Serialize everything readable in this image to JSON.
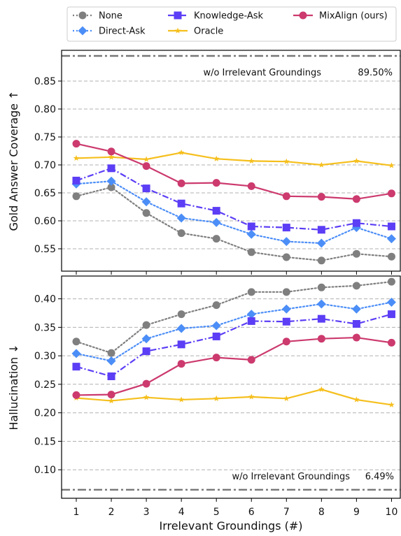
{
  "legend": {
    "items": [
      {
        "label": "None",
        "color": "#7f7f7f",
        "dash": "dotted",
        "marker": "circle"
      },
      {
        "label": "Direct-Ask",
        "color": "#4c8ef7",
        "dash": "dotted",
        "marker": "diamond"
      },
      {
        "label": "Knowledge-Ask",
        "color": "#5b3ef5",
        "dash": "dashdot",
        "marker": "square"
      },
      {
        "label": "Oracle",
        "color": "#f5bf1d",
        "dash": "solid",
        "marker": "star"
      },
      {
        "label": "MixAlign (ours)",
        "color": "#cc3a6e",
        "dash": "solid",
        "marker": "circle"
      }
    ]
  },
  "chart_data": [
    {
      "type": "line",
      "ylabel": "Gold Answer Coverage  ↑",
      "xlabel": "",
      "x": [
        1,
        2,
        3,
        4,
        5,
        6,
        7,
        8,
        9,
        10
      ],
      "ylim": [
        0.51,
        0.905
      ],
      "yticks": [
        "0.55",
        "0.60",
        "0.65",
        "0.70",
        "0.75",
        "0.80",
        "0.85"
      ],
      "grid": "horizontal-dashed",
      "reference": {
        "value": 0.895,
        "text": "w/o Irrelevant Groundings",
        "value_text": "89.50%"
      },
      "series": [
        {
          "name": "None",
          "values": [
            0.644,
            0.66,
            0.614,
            0.578,
            0.568,
            0.544,
            0.535,
            0.529,
            0.541,
            0.536
          ]
        },
        {
          "name": "Direct-Ask",
          "values": [
            0.666,
            0.671,
            0.634,
            0.605,
            0.597,
            0.576,
            0.563,
            0.56,
            0.588,
            0.568
          ]
        },
        {
          "name": "Knowledge-Ask",
          "values": [
            0.672,
            0.694,
            0.658,
            0.631,
            0.618,
            0.59,
            0.588,
            0.584,
            0.596,
            0.59
          ]
        },
        {
          "name": "Oracle",
          "values": [
            0.712,
            0.714,
            0.71,
            0.722,
            0.711,
            0.707,
            0.706,
            0.7,
            0.707,
            0.699
          ]
        },
        {
          "name": "MixAlign (ours)",
          "values": [
            0.738,
            0.724,
            0.698,
            0.667,
            0.668,
            0.662,
            0.644,
            0.643,
            0.639,
            0.649
          ]
        }
      ]
    },
    {
      "type": "line",
      "ylabel": "Hallucination  ↓",
      "xlabel": "Irrelevant Groundings (#)",
      "x": [
        1,
        2,
        3,
        4,
        5,
        6,
        7,
        8,
        9,
        10
      ],
      "xticks": [
        "1",
        "2",
        "3",
        "4",
        "5",
        "6",
        "7",
        "8",
        "9",
        "10"
      ],
      "ylim": [
        0.05,
        0.44
      ],
      "yticks": [
        "0.10",
        "0.15",
        "0.20",
        "0.25",
        "0.30",
        "0.35",
        "0.40"
      ],
      "grid": "horizontal-dashed",
      "reference": {
        "value": 0.0649,
        "text": "w/o Irrelevant Groundings",
        "value_text": "6.49%"
      },
      "series": [
        {
          "name": "None",
          "values": [
            0.325,
            0.305,
            0.354,
            0.373,
            0.389,
            0.412,
            0.412,
            0.42,
            0.423,
            0.43
          ]
        },
        {
          "name": "Direct-Ask",
          "values": [
            0.304,
            0.291,
            0.33,
            0.348,
            0.353,
            0.373,
            0.382,
            0.391,
            0.382,
            0.394
          ]
        },
        {
          "name": "Knowledge-Ask",
          "values": [
            0.281,
            0.264,
            0.308,
            0.32,
            0.334,
            0.361,
            0.36,
            0.365,
            0.356,
            0.373
          ]
        },
        {
          "name": "Oracle",
          "values": [
            0.226,
            0.221,
            0.227,
            0.223,
            0.225,
            0.228,
            0.225,
            0.241,
            0.223,
            0.214
          ]
        },
        {
          "name": "MixAlign (ours)",
          "values": [
            0.231,
            0.232,
            0.251,
            0.286,
            0.297,
            0.293,
            0.325,
            0.33,
            0.332,
            0.323
          ]
        }
      ]
    }
  ]
}
